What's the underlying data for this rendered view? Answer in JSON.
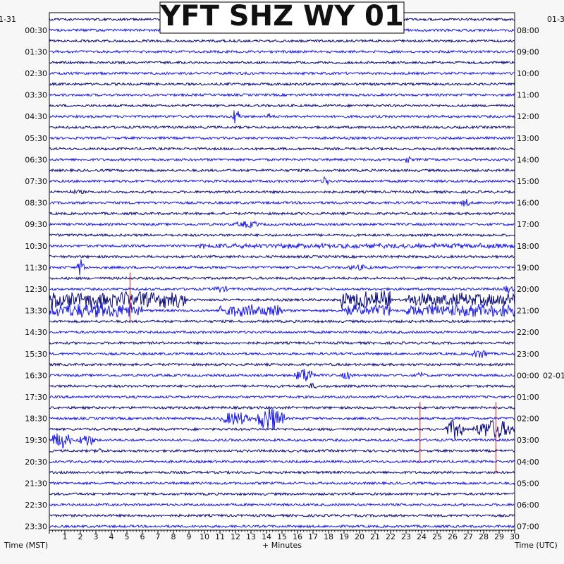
{
  "chart_data": {
    "type": "line",
    "title": "YFT SHZ WY 01",
    "xlabel": "+ Minutes",
    "left_axis_label": "Time (MST)",
    "right_axis_label": "Time (UTC)",
    "x_ticks": [
      "1",
      "2",
      "3",
      "4",
      "5",
      "6",
      "7",
      "8",
      "9",
      "10",
      "11",
      "12",
      "13",
      "14",
      "15",
      "16",
      "17",
      "18",
      "19",
      "20",
      "21",
      "22",
      "23",
      "24",
      "25",
      "26",
      "27",
      "28",
      "29",
      "30"
    ],
    "xlim": [
      0,
      30
    ],
    "left_date_fragment": "1-31",
    "right_date_fragment": "01-3",
    "right_date_change_label": "02-01",
    "left_hour_labels": [
      "00:30",
      "01:30",
      "02:30",
      "03:30",
      "04:30",
      "05:30",
      "06:30",
      "07:30",
      "08:30",
      "09:30",
      "10:30",
      "11:30",
      "12:30",
      "13:30",
      "14:30",
      "15:30",
      "16:30",
      "17:30",
      "18:30",
      "19:30",
      "20:30",
      "21:30",
      "22:30",
      "23:30"
    ],
    "right_hour_labels": [
      "08:00",
      "09:00",
      "10:00",
      "11:00",
      "12:00",
      "13:00",
      "14:00",
      "15:00",
      "16:00",
      "17:00",
      "18:00",
      "19:00",
      "20:00",
      "21:00",
      "22:00",
      "23:00",
      "00:00",
      "01:00",
      "02:00",
      "03:00",
      "04:00",
      "05:00",
      "06:00",
      "07:00"
    ],
    "trace_count": 48,
    "trace_colors": [
      "#0a0a7a",
      "#1a1ae6"
    ],
    "marker_color": "#e01010",
    "events": [
      {
        "trace": 9,
        "start_min": 11.8,
        "end_min": 12.3,
        "amp": 14
      },
      {
        "trace": 9,
        "start_min": 14.0,
        "end_min": 14.3,
        "amp": 6
      },
      {
        "trace": 13,
        "start_min": 22.9,
        "end_min": 23.3,
        "amp": 6
      },
      {
        "trace": 15,
        "start_min": 17.6,
        "end_min": 18.0,
        "amp": 9
      },
      {
        "trace": 16,
        "start_min": 0.8,
        "end_min": 2.6,
        "amp": 3
      },
      {
        "trace": 17,
        "start_min": 26.5,
        "end_min": 27.2,
        "amp": 6
      },
      {
        "trace": 19,
        "start_min": 11.8,
        "end_min": 13.8,
        "amp": 5
      },
      {
        "trace": 21,
        "start_min": 9.5,
        "end_min": 30.0,
        "amp": 4
      },
      {
        "trace": 23,
        "start_min": 1.8,
        "end_min": 2.3,
        "amp": 14
      },
      {
        "trace": 23,
        "start_min": 19.0,
        "end_min": 21.0,
        "amp": 4
      },
      {
        "trace": 25,
        "start_min": 10.5,
        "end_min": 11.6,
        "amp": 5
      },
      {
        "trace": 25,
        "start_min": 29.2,
        "end_min": 30.0,
        "amp": 6
      },
      {
        "trace": 26,
        "start_min": 0.0,
        "end_min": 8.8,
        "amp": 13
      },
      {
        "trace": 26,
        "start_min": 18.8,
        "end_min": 22.0,
        "amp": 14
      },
      {
        "trace": 26,
        "start_min": 23.0,
        "end_min": 30.0,
        "amp": 11
      },
      {
        "trace": 27,
        "start_min": 0.0,
        "end_min": 6.0,
        "amp": 12
      },
      {
        "trace": 27,
        "start_min": 11.0,
        "end_min": 15.0,
        "amp": 10
      },
      {
        "trace": 27,
        "start_min": 18.8,
        "end_min": 22.0,
        "amp": 9
      },
      {
        "trace": 27,
        "start_min": 23.0,
        "end_min": 30.0,
        "amp": 10
      },
      {
        "trace": 31,
        "start_min": 27.2,
        "end_min": 28.4,
        "amp": 7
      },
      {
        "trace": 33,
        "start_min": 15.8,
        "end_min": 17.2,
        "amp": 11
      },
      {
        "trace": 33,
        "start_min": 18.8,
        "end_min": 19.6,
        "amp": 6
      },
      {
        "trace": 33,
        "start_min": 23.6,
        "end_min": 24.3,
        "amp": 5
      },
      {
        "trace": 34,
        "start_min": 16.5,
        "end_min": 17.5,
        "amp": 4
      },
      {
        "trace": 37,
        "start_min": 11.0,
        "end_min": 13.0,
        "amp": 10
      },
      {
        "trace": 37,
        "start_min": 13.3,
        "end_min": 15.2,
        "amp": 18
      },
      {
        "trace": 38,
        "start_min": 25.5,
        "end_min": 26.8,
        "amp": 14
      },
      {
        "trace": 38,
        "start_min": 27.3,
        "end_min": 30.0,
        "amp": 14
      },
      {
        "trace": 39,
        "start_min": 0.0,
        "end_min": 1.5,
        "amp": 12
      },
      {
        "trace": 39,
        "start_min": 1.8,
        "end_min": 3.0,
        "amp": 9
      },
      {
        "trace": 40,
        "start_min": 2.8,
        "end_min": 3.6,
        "amp": 4
      }
    ],
    "markers": [
      {
        "minute": 5.2,
        "from_trace": 24,
        "to_trace": 28
      },
      {
        "minute": 23.9,
        "from_trace": 36,
        "to_trace": 41
      },
      {
        "minute": 28.8,
        "from_trace": 36,
        "to_trace": 42
      }
    ]
  }
}
